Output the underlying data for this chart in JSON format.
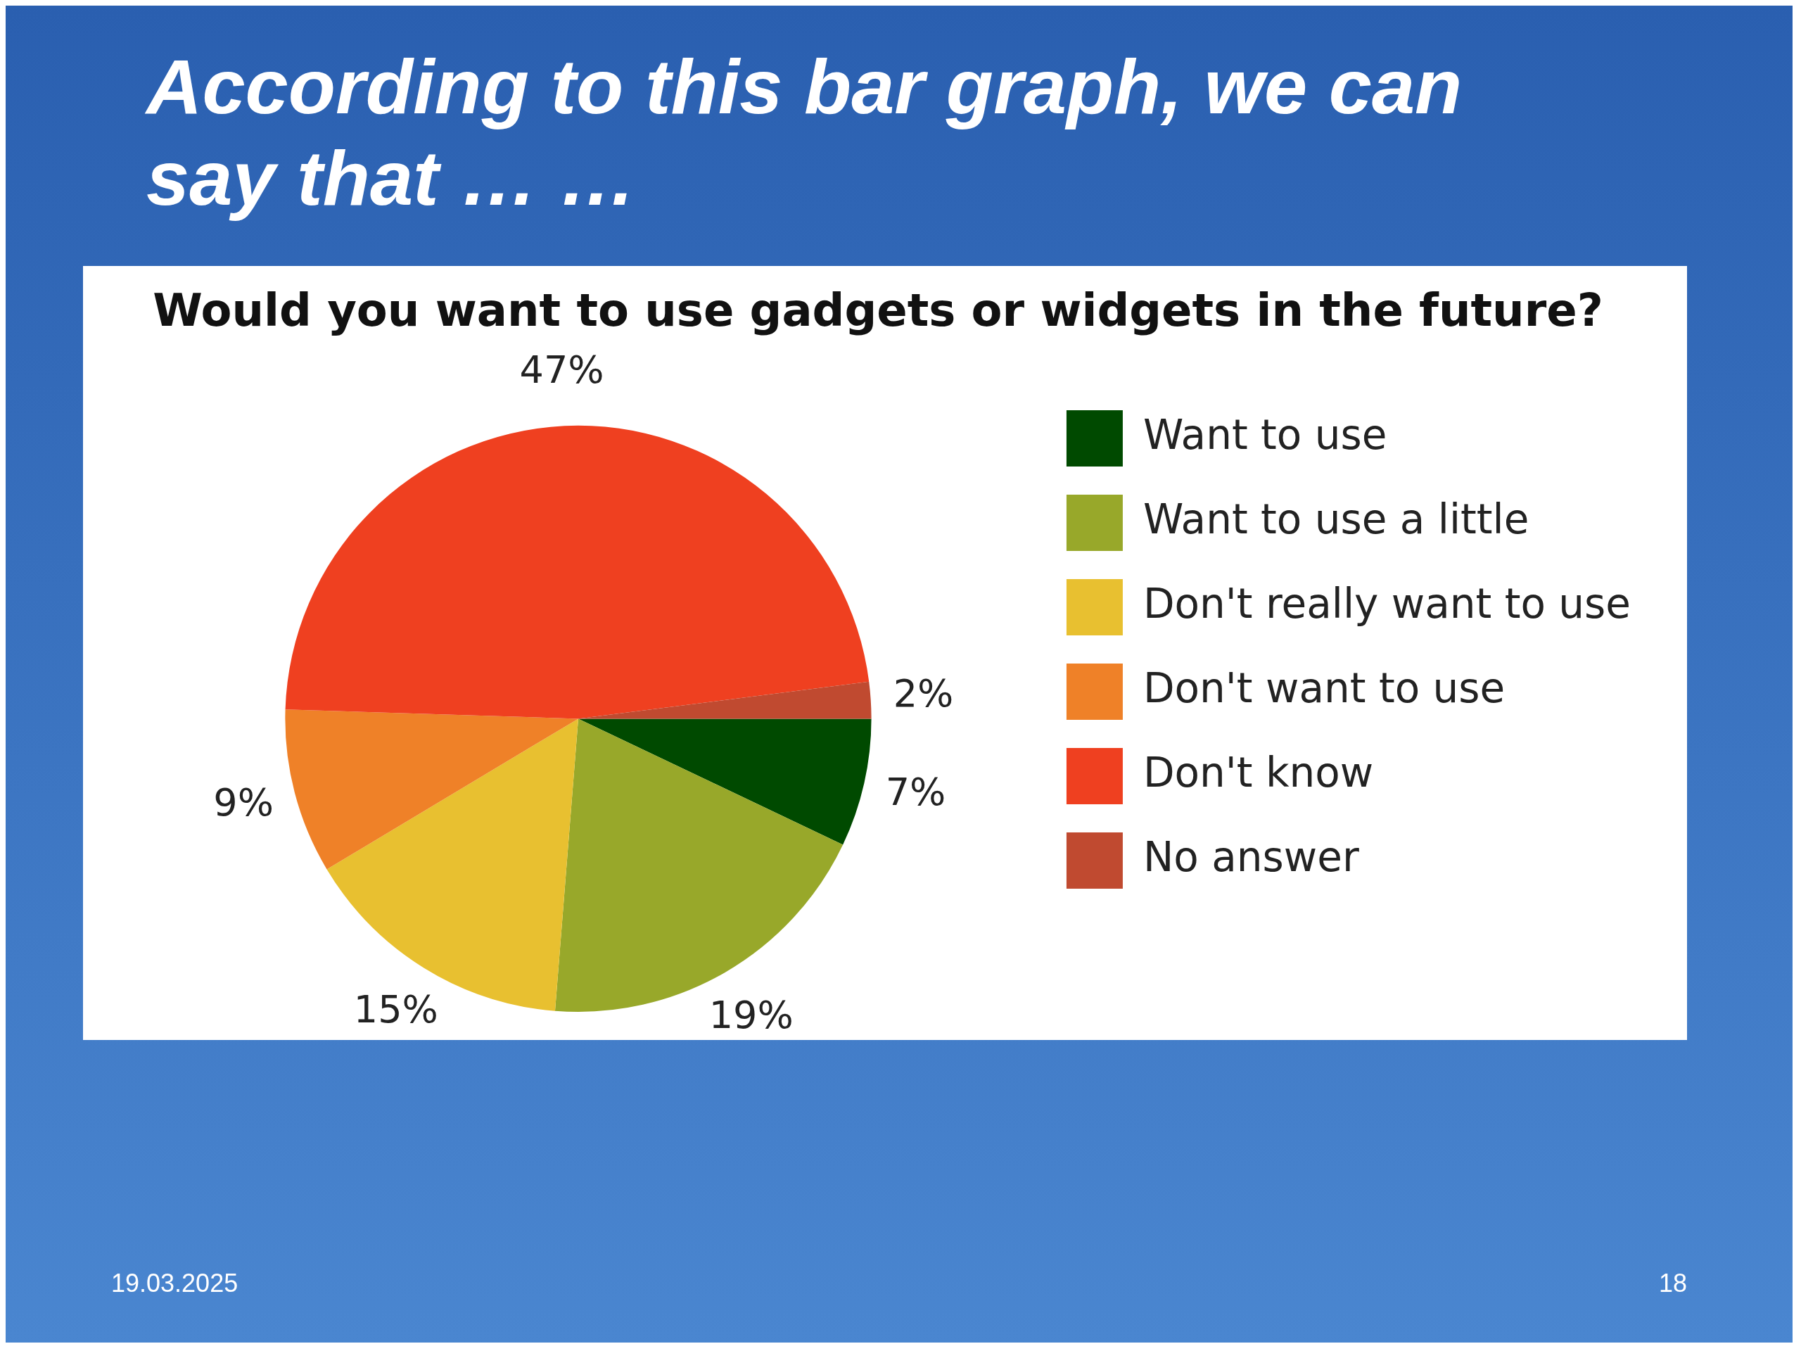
{
  "chart_data": {
    "type": "pie",
    "title": "According to this bar graph, we can say that … …",
    "subtitle": "Would you want to use gadgets or widgets in the future?",
    "categories": [
      "Want to use",
      "Want to use a little",
      "Don't really want to use",
      "Don't want to use",
      "Don't know",
      "No answer"
    ],
    "values": [
      7,
      19,
      15,
      9,
      47,
      2
    ],
    "colors": [
      "#004a00",
      "#98a82a",
      "#e8c030",
      "#ef8128",
      "#ef4020",
      "#c04a30"
    ],
    "value_labels": [
      "7%",
      "19%",
      "15%",
      "9%",
      "47%",
      "2%"
    ],
    "legend": "right",
    "annotations": [
      "19.03.2025",
      "18"
    ]
  }
}
